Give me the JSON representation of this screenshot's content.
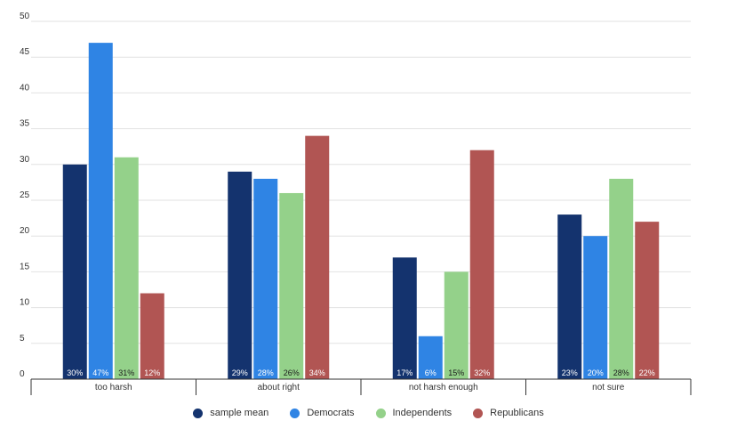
{
  "chart_data": {
    "type": "bar",
    "categories": [
      "too harsh",
      "about right",
      "not harsh enough",
      "not sure"
    ],
    "series": [
      {
        "name": "sample mean",
        "color": "#14336e",
        "values": [
          30,
          29,
          17,
          23
        ],
        "labels": [
          "30%",
          "29%",
          "17%",
          "23%"
        ]
      },
      {
        "name": "Democrats",
        "color": "#2f84e4",
        "values": [
          47,
          28,
          6,
          20
        ],
        "labels": [
          "47%",
          "28%",
          "6%",
          "20%"
        ]
      },
      {
        "name": "Independents",
        "color": "#94d18a",
        "values": [
          31,
          26,
          15,
          28
        ],
        "labels": [
          "31%",
          "26%",
          "15%",
          "28%"
        ]
      },
      {
        "name": "Republicans",
        "color": "#b15553",
        "values": [
          12,
          34,
          32,
          22
        ],
        "labels": [
          "12%",
          "34%",
          "32%",
          "22%"
        ]
      }
    ],
    "yticks": [
      "0",
      "5",
      "10",
      "15",
      "20",
      "25",
      "30",
      "35",
      "40",
      "45",
      "50"
    ],
    "ylim": [
      0,
      50
    ],
    "grid": true,
    "legend_position": "bottom"
  }
}
